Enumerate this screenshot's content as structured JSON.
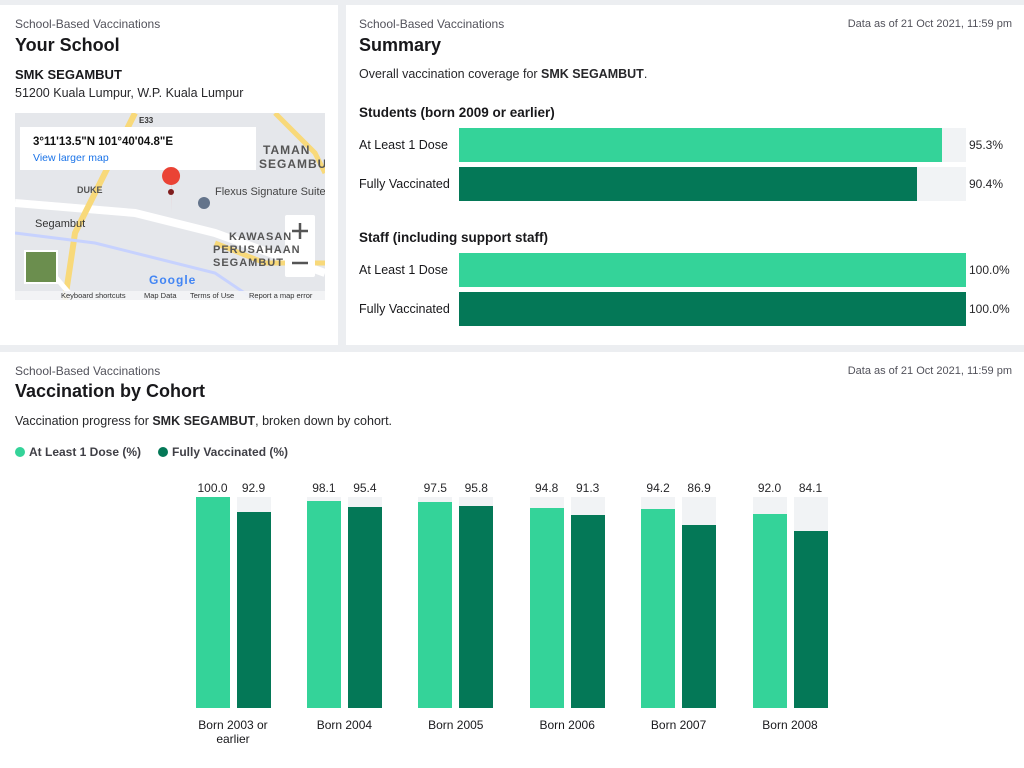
{
  "school_panel": {
    "kicker": "School-Based Vaccinations",
    "title": "Your School",
    "school_name": "SMK SEGAMBUT",
    "address": "51200 Kuala Lumpur, W.P. Kuala Lumpur",
    "map": {
      "coords": "3°11'13.5\"N 101°40'04.8\"E",
      "link": "View larger map",
      "labels": [
        "TAMAN",
        "SEGAMBUT",
        "Flexus Signature Suites",
        "Segambut",
        "KAWASAN",
        "PERUSAHAAN",
        "SEGAMBUT",
        "DUKE",
        "E33",
        "Google"
      ],
      "footer": [
        "Keyboard shortcuts",
        "Map Data",
        "Terms of Use",
        "Report a map error"
      ]
    }
  },
  "summary_panel": {
    "kicker": "School-Based Vaccinations",
    "title": "Summary",
    "timestamp": "Data as of 21 Oct 2021, 11:59 pm",
    "intro_prefix": "Overall vaccination coverage for ",
    "intro_school": "SMK SEGAMBUT",
    "intro_suffix": "."
  },
  "cohort_panel": {
    "kicker": "School-Based Vaccinations",
    "title": "Vaccination by Cohort",
    "timestamp": "Data as of 21 Oct 2021, 11:59 pm",
    "intro_prefix": "Vaccination progress for ",
    "intro_school": "SMK SEGAMBUT",
    "intro_suffix": ", broken down by cohort."
  },
  "chart_data": [
    {
      "type": "hbar",
      "title": "Students (born 2009 or earlier)",
      "categories": [
        "At Least 1 Dose",
        "Fully Vaccinated"
      ],
      "values": [
        95.3,
        90.4
      ],
      "value_labels": [
        "95.3%",
        "90.4%"
      ],
      "colors": [
        "#34d399",
        "#047857"
      ],
      "xlim": [
        0,
        100
      ]
    },
    {
      "type": "hbar",
      "title": "Staff (including support staff)",
      "categories": [
        "At Least 1 Dose",
        "Fully Vaccinated"
      ],
      "values": [
        100,
        100
      ],
      "value_labels": [
        "100.0%",
        "100.0%"
      ],
      "colors": [
        "#34d399",
        "#047857"
      ],
      "xlim": [
        0,
        100
      ]
    },
    {
      "type": "bar",
      "categories": [
        "Born 2003 or earlier",
        "Born 2004",
        "Born 2005",
        "Born 2006",
        "Born 2007",
        "Born 2008"
      ],
      "series": [
        {
          "name": "At Least 1 Dose (%)",
          "color": "#34d399",
          "values": [
            100,
            98.1,
            97.5,
            94.8,
            94.2,
            92
          ],
          "value_labels": [
            "100.0",
            "98.1",
            "97.5",
            "94.8",
            "94.2",
            "92.0"
          ]
        },
        {
          "name": "Fully Vaccinated (%)",
          "color": "#047857",
          "values": [
            92.9,
            95.4,
            95.8,
            91.3,
            86.9,
            84.1
          ],
          "value_labels": [
            "92.9",
            "95.4",
            "95.8",
            "91.3",
            "86.9",
            "84.1"
          ]
        }
      ],
      "ylim": [
        0,
        100
      ]
    }
  ]
}
